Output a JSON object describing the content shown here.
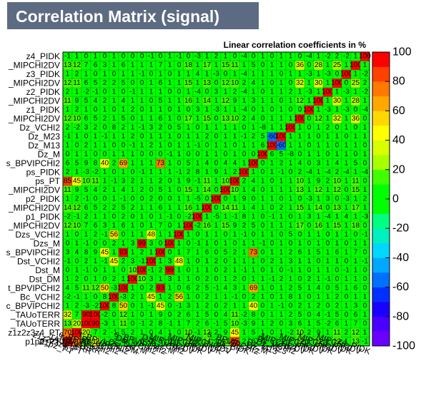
{
  "chart_data": {
    "type": "heatmap",
    "title": "Correlation Matrix (signal)",
    "subtitle": "Linear correlation coefficients in %",
    "variables": [
      "p1p2_PT",
      "z1z2z3z4_PT",
      "_TAUoTERR",
      "_TAUoTERR",
      "c_BPVIPCHI2",
      "Bc_VCHI2",
      "t_BPVIPCHI2",
      "Dst_DM",
      "Dst_M",
      "Dst_VCHI2",
      "s_BPVIPCHI2",
      "Dzs_M",
      "Dzs_VCHI2",
      "_MIPCHI2DV",
      "p1_PIDK",
      "_MIPCHI2DV",
      "p2_PIDK",
      "_MIPCHI2DV",
      "ps_PT",
      "ps_PIDK",
      "s_BPVIPCHI2",
      "Dz_M",
      "Dz_M13",
      "Dz_M23",
      "Dz_VCHI2",
      "_MIPCHI2DV",
      "z1_PIDK",
      "_MIPCHI2DV",
      "z2_PIDK",
      "_MIPCHI2DV",
      "z3_PIDK",
      "_MIPCHI2DV",
      "z4_PIDK"
    ],
    "values": [
      [
        100,
        70,
        13,
        32,
        1,
        -2,
        4,
        1,
        0,
        -1,
        3,
        0,
        1,
        12,
        -2,
        14,
        1,
        11,
        85,
        2,
        6,
        0,
        1,
        -1,
        2,
        12,
        1,
        11,
        2,
        12,
        1,
        13,
        -1
      ],
      [
        70,
        100,
        20,
        7,
        2,
        -1,
        5,
        2,
        1,
        0,
        4,
        1,
        0,
        10,
        -1,
        12,
        2,
        9,
        45,
        1,
        5,
        1,
        0,
        1,
        -2,
        10,
        2,
        9,
        1,
        11,
        2,
        12,
        1
      ],
      [
        13,
        20,
        100,
        90,
        -3,
        1,
        11,
        0,
        -1,
        2,
        8,
        -1,
        1,
        7,
        2,
        6,
        -1,
        5,
        10,
        -3,
        9,
        1,
        2,
        0,
        3,
        6,
        1,
        5,
        -2,
        6,
        1,
        7,
        0
      ],
      [
        32,
        7,
        90,
        100,
        -2,
        0,
        12,
        1,
        0,
        1,
        9,
        0,
        2,
        6,
        1,
        5,
        0,
        4,
        11,
        -2,
        8,
        0,
        1,
        1,
        2,
        5,
        0,
        4,
        -1,
        5,
        0,
        6,
        1
      ],
      [
        1,
        2,
        -3,
        -2,
        100,
        8,
        50,
        0,
        1,
        -1,
        45,
        0,
        -1,
        3,
        1,
        2,
        0,
        2,
        1,
        1,
        40,
        0,
        1,
        -1,
        0,
        2,
        1,
        2,
        0,
        2,
        1,
        3,
        0
      ],
      [
        -2,
        -1,
        1,
        0,
        8,
        100,
        -3,
        2,
        1,
        45,
        1,
        2,
        56,
        1,
        0,
        2,
        1,
        1,
        -1,
        0,
        2,
        1,
        0,
        1,
        8,
        1,
        0,
        1,
        1,
        2,
        0,
        1,
        1
      ],
      [
        4,
        5,
        11,
        12,
        50,
        -3,
        100,
        1,
        0,
        2,
        93,
        1,
        0,
        6,
        2,
        5,
        -1,
        4,
        3,
        1,
        69,
        1,
        0,
        1,
        2,
        5,
        1,
        4,
        0,
        5,
        1,
        6,
        0
      ],
      [
        1,
        2,
        0,
        1,
        0,
        2,
        1,
        100,
        10,
        3,
        1,
        3,
        1,
        1,
        0,
        2,
        0,
        1,
        2,
        0,
        1,
        1,
        -1,
        2,
        1,
        0,
        2,
        1,
        -1,
        0,
        1,
        1,
        0
      ],
      [
        0,
        1,
        -1,
        0,
        1,
        1,
        0,
        10,
        100,
        -1,
        2,
        99,
        1,
        0,
        1,
        1,
        0,
        2,
        1,
        -1,
        1,
        0,
        1,
        0,
        -1,
        1,
        0,
        1,
        1,
        0,
        -1,
        1,
        0
      ],
      [
        -1,
        0,
        2,
        1,
        -1,
        45,
        2,
        3,
        -1,
        100,
        1,
        3,
        48,
        1,
        0,
        1,
        2,
        0,
        1,
        1,
        1,
        0,
        2,
        1,
        3,
        1,
        1,
        0,
        1,
        1,
        0,
        1,
        -1
      ],
      [
        3,
        4,
        8,
        9,
        45,
        1,
        93,
        1,
        2,
        1,
        100,
        0,
        1,
        7,
        1,
        6,
        0,
        5,
        2,
        1,
        73,
        0,
        1,
        1,
        2,
        6,
        1,
        5,
        1,
        6,
        1,
        7,
        0
      ],
      [
        0,
        1,
        -1,
        0,
        0,
        2,
        1,
        3,
        99,
        3,
        0,
        100,
        1,
        0,
        -1,
        1,
        0,
        1,
        0,
        1,
        1,
        -1,
        0,
        1,
        0,
        1,
        0,
        1,
        0,
        1,
        0,
        1,
        1
      ],
      [
        1,
        0,
        1,
        2,
        -1,
        56,
        0,
        1,
        1,
        48,
        1,
        1,
        100,
        1,
        0,
        1,
        1,
        0,
        1,
        -1,
        0,
        1,
        1,
        0,
        5,
        0,
        1,
        1,
        0,
        1,
        1,
        0,
        -1
      ],
      [
        12,
        10,
        7,
        6,
        3,
        1,
        6,
        1,
        0,
        1,
        7,
        0,
        1,
        100,
        -2,
        16,
        1,
        15,
        9,
        2,
        5,
        0,
        1,
        1,
        1,
        17,
        0,
        16,
        1,
        15,
        1,
        18,
        0
      ],
      [
        -2,
        -1,
        2,
        1,
        1,
        0,
        2,
        0,
        1,
        0,
        1,
        -1,
        0,
        -2,
        100,
        1,
        -5,
        1,
        -1,
        8,
        1,
        0,
        -1,
        1,
        0,
        1,
        3,
        1,
        -4,
        1,
        4,
        1,
        -3
      ],
      [
        14,
        12,
        6,
        5,
        2,
        2,
        5,
        2,
        1,
        1,
        6,
        1,
        1,
        16,
        1,
        100,
        0,
        14,
        11,
        1,
        4,
        1,
        0,
        2,
        1,
        15,
        1,
        14,
        0,
        13,
        1,
        17,
        1
      ],
      [
        1,
        2,
        -1,
        0,
        0,
        1,
        -1,
        0,
        0,
        2,
        0,
        0,
        1,
        1,
        -5,
        0,
        100,
        0,
        1,
        9,
        0,
        1,
        1,
        0,
        1,
        0,
        -3,
        1,
        3,
        0,
        -3,
        1,
        2
      ],
      [
        11,
        9,
        5,
        4,
        2,
        1,
        4,
        1,
        2,
        0,
        5,
        1,
        0,
        15,
        1,
        14,
        0,
        100,
        10,
        1,
        4,
        0,
        1,
        1,
        1,
        13,
        1,
        12,
        1,
        12,
        0,
        15,
        1
      ],
      [
        85,
        45,
        10,
        11,
        1,
        -1,
        3,
        2,
        1,
        1,
        2,
        0,
        1,
        9,
        -1,
        11,
        1,
        10,
        100,
        2,
        4,
        1,
        0,
        1,
        1,
        10,
        1,
        9,
        2,
        10,
        1,
        11,
        0
      ],
      [
        2,
        1,
        -3,
        -2,
        1,
        0,
        1,
        0,
        -1,
        1,
        1,
        1,
        -1,
        2,
        8,
        1,
        9,
        1,
        2,
        100,
        1,
        0,
        1,
        -1,
        0,
        2,
        -4,
        1,
        -4,
        2,
        -4,
        1,
        -4
      ],
      [
        6,
        5,
        9,
        8,
        40,
        2,
        69,
        1,
        1,
        1,
        73,
        1,
        0,
        5,
        1,
        4,
        0,
        4,
        4,
        1,
        100,
        0,
        1,
        2,
        1,
        4,
        0,
        3,
        1,
        4,
        1,
        5,
        0
      ],
      [
        0,
        1,
        1,
        0,
        0,
        1,
        1,
        1,
        0,
        0,
        0,
        -1,
        1,
        0,
        0,
        1,
        1,
        0,
        1,
        0,
        0,
        100,
        6,
        5,
        -8,
        0,
        1,
        1,
        0,
        1,
        1,
        0,
        1
      ],
      [
        1,
        0,
        2,
        1,
        1,
        0,
        0,
        -1,
        1,
        2,
        1,
        0,
        1,
        1,
        -1,
        0,
        1,
        1,
        0,
        1,
        1,
        6,
        100,
        -60,
        1,
        1,
        0,
        1,
        1,
        0,
        1,
        1,
        0
      ],
      [
        -1,
        1,
        0,
        1,
        -1,
        1,
        1,
        2,
        0,
        1,
        1,
        1,
        0,
        1,
        1,
        2,
        0,
        1,
        1,
        -1,
        2,
        5,
        -60,
        100,
        1,
        1,
        1,
        0,
        1,
        1,
        0,
        1,
        1
      ],
      [
        2,
        -2,
        3,
        2,
        0,
        8,
        2,
        1,
        -1,
        3,
        2,
        0,
        5,
        1,
        0,
        1,
        1,
        1,
        1,
        0,
        1,
        -8,
        1,
        1,
        100,
        1,
        0,
        1,
        2,
        0,
        1,
        0,
        1
      ],
      [
        12,
        10,
        6,
        5,
        2,
        1,
        5,
        0,
        1,
        1,
        6,
        1,
        0,
        17,
        1,
        15,
        0,
        13,
        10,
        2,
        4,
        0,
        1,
        1,
        1,
        100,
        0,
        12,
        1,
        32,
        1,
        36,
        0
      ],
      [
        1,
        2,
        1,
        0,
        1,
        0,
        1,
        2,
        0,
        1,
        1,
        0,
        1,
        0,
        3,
        1,
        -3,
        1,
        1,
        -4,
        0,
        1,
        0,
        1,
        0,
        0,
        100,
        1,
        -3,
        1,
        -3,
        0,
        -4
      ],
      [
        11,
        9,
        5,
        4,
        2,
        1,
        4,
        1,
        1,
        0,
        5,
        1,
        1,
        16,
        1,
        14,
        1,
        12,
        9,
        1,
        3,
        1,
        1,
        0,
        1,
        12,
        1,
        100,
        1,
        30,
        1,
        28,
        1
      ],
      [
        2,
        1,
        -2,
        -1,
        0,
        1,
        0,
        -1,
        1,
        1,
        1,
        0,
        0,
        1,
        -4,
        0,
        3,
        1,
        2,
        -4,
        1,
        0,
        1,
        1,
        2,
        1,
        -3,
        1,
        100,
        1,
        -3,
        1,
        -2
      ],
      [
        12,
        11,
        6,
        5,
        2,
        2,
        5,
        0,
        0,
        1,
        6,
        1,
        1,
        15,
        1,
        13,
        0,
        12,
        10,
        2,
        4,
        1,
        0,
        1,
        0,
        32,
        1,
        30,
        1,
        100,
        0,
        25,
        2
      ],
      [
        1,
        2,
        1,
        0,
        1,
        0,
        1,
        1,
        -1,
        0,
        1,
        0,
        1,
        1,
        4,
        1,
        -3,
        0,
        1,
        -4,
        1,
        1,
        1,
        0,
        1,
        1,
        -3,
        1,
        -3,
        0,
        100,
        1,
        -2
      ],
      [
        13,
        12,
        7,
        6,
        3,
        1,
        6,
        1,
        1,
        1,
        7,
        1,
        0,
        18,
        1,
        17,
        1,
        15,
        11,
        1,
        5,
        0,
        1,
        1,
        0,
        36,
        0,
        28,
        1,
        25,
        1,
        100,
        1
      ],
      [
        -1,
        1,
        0,
        1,
        0,
        1,
        0,
        0,
        0,
        -1,
        0,
        1,
        -1,
        0,
        -3,
        1,
        2,
        1,
        0,
        -4,
        0,
        1,
        0,
        1,
        1,
        0,
        -4,
        1,
        -2,
        2,
        -2,
        1,
        100
      ]
    ],
    "zlim": [
      -100,
      100
    ],
    "zticks": [
      -100,
      -80,
      -60,
      -40,
      -20,
      0,
      20,
      40,
      60,
      80,
      100
    ],
    "palette": [
      "#6a00ff",
      "#4a00ff",
      "#1a00ff",
      "#0030ff",
      "#0070ff",
      "#00a8ff",
      "#00d8ff",
      "#00f0c0",
      "#00ff80",
      "#00ff00",
      "#00ff00",
      "#40ff00",
      "#a8ff00",
      "#d8ff00",
      "#ffff00",
      "#ffd800",
      "#ffa800",
      "#ff7800",
      "#ff4000",
      "#ff0000"
    ]
  }
}
